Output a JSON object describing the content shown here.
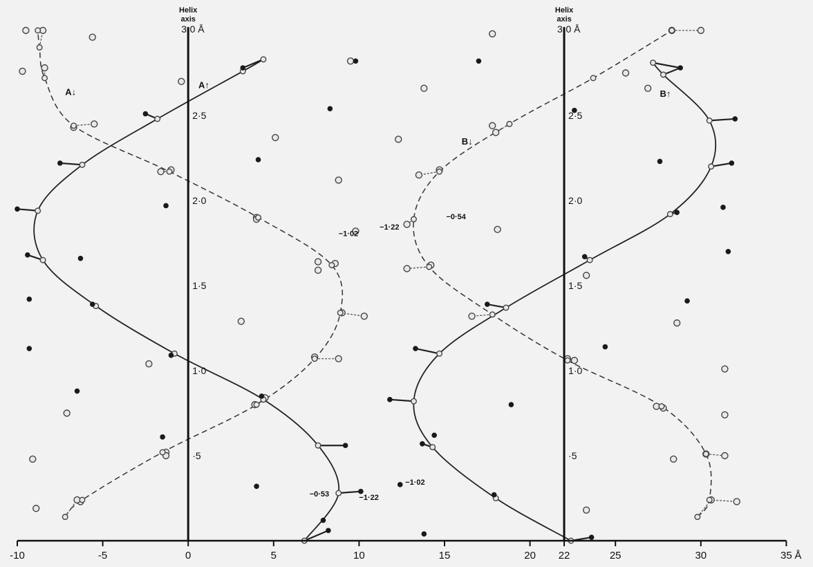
{
  "chart_data": {
    "type": "scatter",
    "title": "",
    "xlabel": "Å",
    "ylabel": "",
    "xlim": [
      -10,
      35
    ],
    "ylim": [
      0,
      30
    ],
    "x_ticks": [
      "-10",
      "-5",
      "0",
      "5",
      "10",
      "15",
      "20",
      "22",
      "25",
      "30",
      "35"
    ],
    "helix_axes": [
      {
        "x": 0,
        "label_line1": "Helix",
        "label_line2": "axis",
        "top_label": "3·0 Å",
        "height_labels": [
          "2·5",
          "2·0",
          "1·5",
          "1·0",
          "·5"
        ],
        "height_values": [
          25,
          20,
          15,
          10,
          5
        ]
      },
      {
        "x": 22,
        "label_line1": "Helix",
        "label_line2": "axis",
        "top_label": "3·0 Å",
        "height_labels": [
          "2·5",
          "2·0",
          "1·5",
          "1·0",
          "·5"
        ],
        "height_values": [
          25,
          20,
          15,
          10,
          5
        ]
      }
    ],
    "strands": [
      {
        "name": "A↑",
        "style": "solid",
        "points": [
          [
            6.8,
            0
          ],
          [
            8.8,
            2.8
          ],
          [
            7.6,
            5.6
          ],
          [
            4.4,
            8.3
          ],
          [
            -0.8,
            11
          ],
          [
            -5.4,
            13.8
          ],
          [
            -8.5,
            16.5
          ],
          [
            -8.8,
            19.4
          ],
          [
            -6.2,
            22.1
          ],
          [
            -1.8,
            24.8
          ],
          [
            3.2,
            27.6
          ],
          [
            4.4,
            28.3
          ]
        ]
      },
      {
        "name": "A↓",
        "style": "dashed",
        "points": [
          [
            -7.2,
            1.4
          ],
          [
            -6.2,
            2.4
          ],
          [
            -1.5,
            5.2
          ],
          [
            4.0,
            8.0
          ],
          [
            7.4,
            10.7
          ],
          [
            8.9,
            13.4
          ],
          [
            8.4,
            16.2
          ],
          [
            4.1,
            19.0
          ],
          [
            -1.1,
            21.7
          ],
          [
            -6.7,
            24.4
          ],
          [
            -8.4,
            27.2
          ],
          [
            -8.7,
            29.0
          ],
          [
            -8.8,
            30.0
          ]
        ]
      },
      {
        "name": "B↑",
        "style": "solid",
        "points": [
          [
            22.4,
            0
          ],
          [
            18.0,
            2.5
          ],
          [
            14.3,
            5.5
          ],
          [
            13.2,
            8.2
          ],
          [
            14.7,
            11.0
          ],
          [
            18.6,
            13.7
          ],
          [
            23.5,
            16.5
          ],
          [
            28.2,
            19.2
          ],
          [
            30.6,
            22.0
          ],
          [
            30.5,
            24.7
          ],
          [
            27.8,
            27.4
          ],
          [
            27.2,
            28.1
          ]
        ]
      },
      {
        "name": "B↓",
        "style": "dashed",
        "points": [
          [
            29.8,
            1.4
          ],
          [
            30.5,
            2.4
          ],
          [
            30.3,
            5.1
          ],
          [
            27.7,
            7.9
          ],
          [
            22.2,
            10.6
          ],
          [
            17.8,
            13.3
          ],
          [
            14.1,
            16.1
          ],
          [
            13.2,
            18.9
          ],
          [
            14.7,
            21.7
          ],
          [
            18.8,
            24.5
          ],
          [
            23.7,
            27.2
          ],
          [
            28.3,
            30.0
          ]
        ]
      }
    ],
    "filled_points": [
      [
        3.2,
        27.8
      ],
      [
        -2.5,
        25.1
      ],
      [
        -7.5,
        22.2
      ],
      [
        -10.0,
        19.5
      ],
      [
        -9.4,
        16.8
      ],
      [
        -5.6,
        13.9
      ],
      [
        -1.0,
        10.9
      ],
      [
        4.3,
        8.5
      ],
      [
        9.2,
        5.6
      ],
      [
        10.1,
        2.9
      ],
      [
        8.2,
        0.6
      ],
      [
        7.9,
        1.2
      ],
      [
        9.8,
        28.2
      ],
      [
        8.3,
        25.4
      ],
      [
        4.1,
        22.4
      ],
      [
        -1.3,
        19.7
      ],
      [
        -6.3,
        16.6
      ],
      [
        -9.3,
        14.2
      ],
      [
        -9.3,
        11.3
      ],
      [
        -6.5,
        8.8
      ],
      [
        -1.5,
        6.1
      ],
      [
        4.0,
        3.2
      ],
      [
        13.8,
        0.4
      ],
      [
        12.4,
        3.3
      ],
      [
        17.0,
        28.2
      ],
      [
        22.6,
        25.3
      ],
      [
        27.6,
        22.3
      ],
      [
        31.3,
        19.6
      ],
      [
        31.6,
        17.0
      ],
      [
        29.2,
        14.1
      ],
      [
        24.4,
        11.4
      ],
      [
        18.9,
        8.0
      ],
      [
        14.4,
        6.2
      ],
      [
        13.7,
        5.7
      ],
      [
        17.9,
        2.7
      ],
      [
        23.6,
        0.2
      ],
      [
        28.8,
        27.8
      ],
      [
        32.0,
        24.8
      ],
      [
        31.8,
        22.2
      ],
      [
        28.6,
        19.3
      ],
      [
        23.2,
        16.7
      ],
      [
        17.5,
        13.9
      ],
      [
        13.3,
        11.3
      ],
      [
        11.8,
        8.3
      ]
    ],
    "open_points": [
      [
        -9.5,
        30.0
      ],
      [
        -8.5,
        30.0
      ],
      [
        -5.6,
        29.6
      ],
      [
        -9.7,
        27.6
      ],
      [
        -8.4,
        27.8
      ],
      [
        -0.4,
        27.0
      ],
      [
        -6.7,
        24.3
      ],
      [
        -5.5,
        24.5
      ],
      [
        -1.6,
        21.7
      ],
      [
        -1.0,
        21.8
      ],
      [
        4.0,
        19.0
      ],
      [
        4.0,
        18.9
      ],
      [
        8.6,
        16.3
      ],
      [
        7.6,
        16.4
      ],
      [
        7.6,
        15.9
      ],
      [
        10.3,
        13.2
      ],
      [
        9.0,
        13.4
      ],
      [
        3.1,
        12.9
      ],
      [
        8.8,
        10.7
      ],
      [
        7.4,
        10.8
      ],
      [
        -2.3,
        10.4
      ],
      [
        -7.1,
        7.5
      ],
      [
        3.9,
        8.0
      ],
      [
        4.5,
        8.4
      ],
      [
        -1.3,
        5.2
      ],
      [
        -1.3,
        5.0
      ],
      [
        -9.1,
        4.8
      ],
      [
        -6.3,
        2.3
      ],
      [
        -6.5,
        2.4
      ],
      [
        -8.9,
        1.9
      ],
      [
        9.5,
        28.2
      ],
      [
        13.8,
        26.6
      ],
      [
        5.1,
        23.7
      ],
      [
        8.8,
        21.2
      ],
      [
        9.8,
        18.2
      ],
      [
        12.3,
        23.6
      ],
      [
        12.8,
        18.6
      ],
      [
        14.2,
        16.2
      ],
      [
        12.8,
        16.0
      ],
      [
        16.6,
        13.2
      ],
      [
        13.5,
        21.5
      ],
      [
        14.7,
        21.8
      ],
      [
        17.8,
        29.8
      ],
      [
        18.0,
        24.0
      ],
      [
        17.8,
        24.4
      ],
      [
        18.1,
        18.3
      ],
      [
        22.2,
        10.7
      ],
      [
        22.6,
        10.6
      ],
      [
        27.8,
        7.8
      ],
      [
        27.4,
        7.9
      ],
      [
        31.4,
        10.1
      ],
      [
        31.4,
        7.4
      ],
      [
        31.4,
        5.0
      ],
      [
        30.3,
        5.1
      ],
      [
        28.4,
        4.8
      ],
      [
        32.1,
        2.3
      ],
      [
        30.6,
        2.4
      ],
      [
        23.3,
        1.8
      ],
      [
        28.3,
        30.0
      ],
      [
        30.0,
        30.0
      ],
      [
        26.9,
        26.6
      ],
      [
        25.6,
        27.5
      ],
      [
        28.6,
        12.8
      ],
      [
        23.3,
        15.6
      ]
    ],
    "annotations": [
      {
        "text": "A↑",
        "x": 0.6,
        "y": 26.6
      },
      {
        "text": "A↓",
        "x": -7.2,
        "y": 26.2
      },
      {
        "text": "B↑",
        "x": 27.6,
        "y": 26.1
      },
      {
        "text": "B↓",
        "x": 16.0,
        "y": 23.3
      },
      {
        "text": "−1·02",
        "x": 8.8,
        "y": 17.9
      },
      {
        "text": "−1·22",
        "x": 11.2,
        "y": 18.3
      },
      {
        "text": "−0·54",
        "x": 15.1,
        "y": 18.9
      },
      {
        "text": "−0·53",
        "x": 7.1,
        "y": 2.6
      },
      {
        "text": "−1·22",
        "x": 10.0,
        "y": 2.4
      },
      {
        "text": "−1·02",
        "x": 12.7,
        "y": 3.3
      }
    ]
  }
}
